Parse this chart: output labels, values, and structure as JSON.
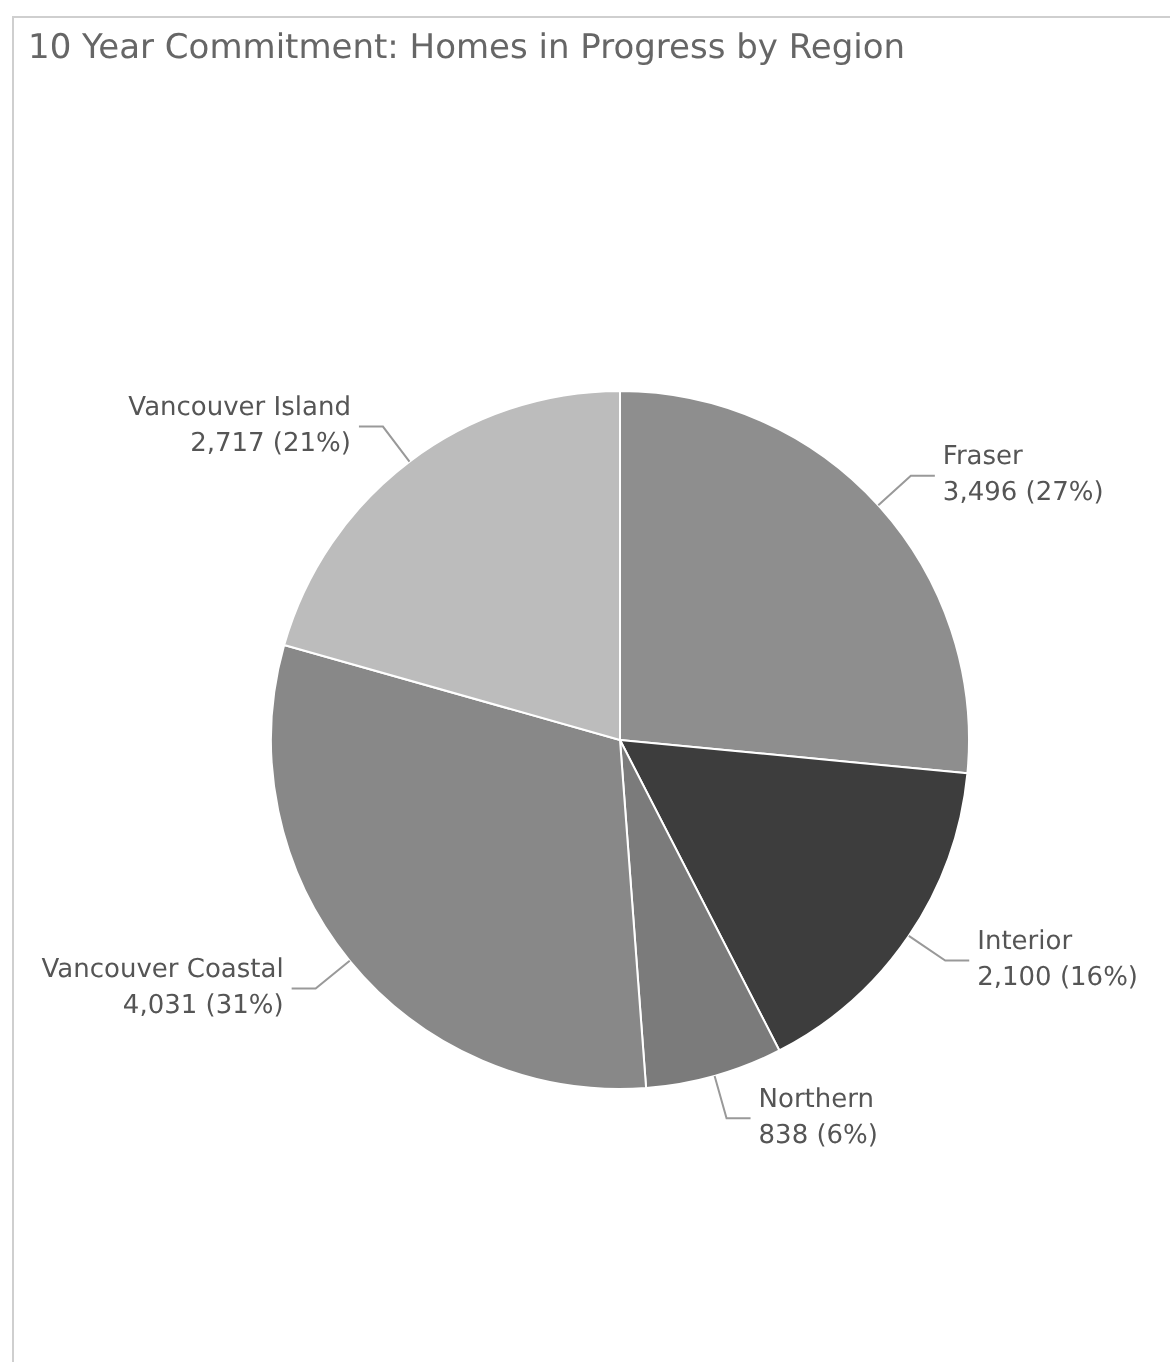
{
  "chart_data": {
    "type": "pie",
    "title": "10 Year Commitment: Homes in Progress by Region",
    "categories": [
      "Fraser",
      "Interior",
      "Northern",
      "Vancouver Coastal",
      "Vancouver Island"
    ],
    "values": [
      3496,
      2100,
      838,
      4031,
      2717
    ],
    "value_labels": [
      "3,496 (27%)",
      "2,100 (16%)",
      "838 (6%)",
      "4,031 (31%)",
      "2,717 (21%)"
    ],
    "colors": [
      "#8e8e8e",
      "#3d3d3d",
      "#7b7b7b",
      "#888888",
      "#bcbcbc"
    ],
    "legend": false
  }
}
